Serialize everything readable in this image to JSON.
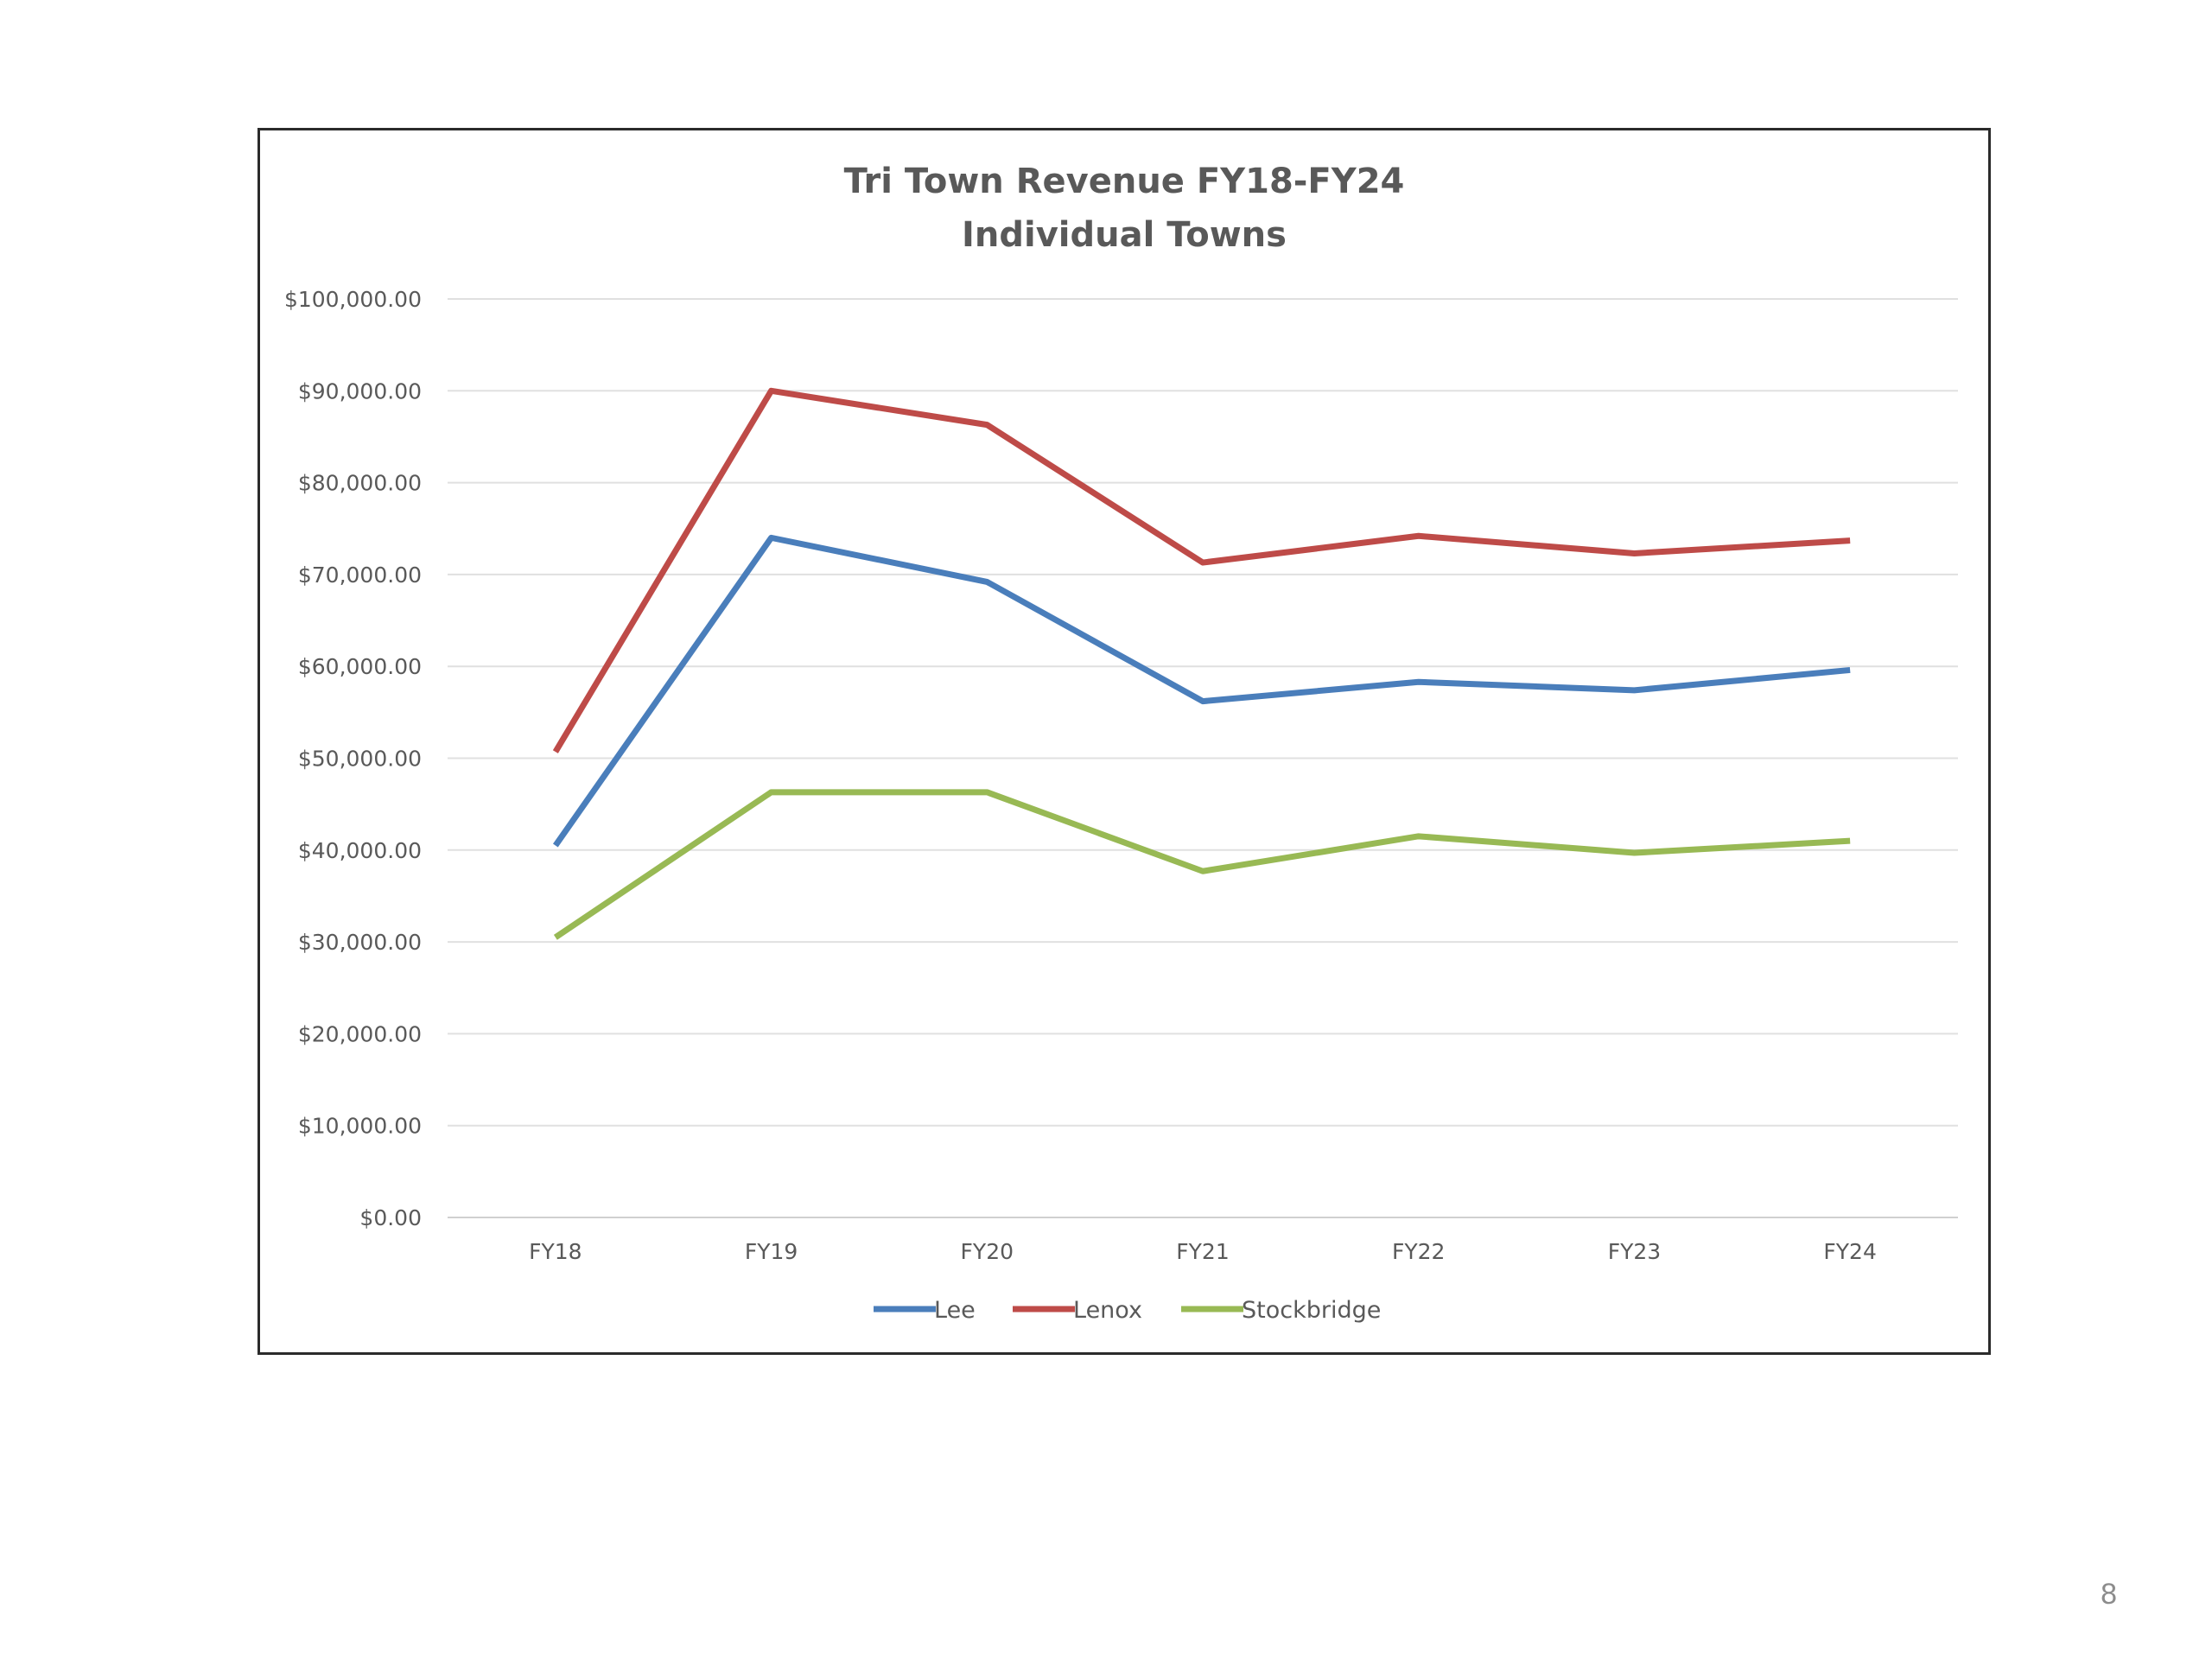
{
  "slide": {
    "page_number": "8"
  },
  "chart_data": {
    "type": "line",
    "title": [
      "Tri Town Revenue FY18-FY24",
      "Individual Towns"
    ],
    "xlabel": "",
    "ylabel": "",
    "categories": [
      "FY18",
      "FY19",
      "FY20",
      "FY21",
      "FY22",
      "FY23",
      "FY24"
    ],
    "ylim": [
      0,
      100000
    ],
    "y_ticks": [
      0,
      10000,
      20000,
      30000,
      40000,
      50000,
      60000,
      70000,
      80000,
      90000,
      100000
    ],
    "y_tick_labels": [
      "$0.00",
      "$10,000.00",
      "$20,000.00",
      "$30,000.00",
      "$40,000.00",
      "$50,000.00",
      "$60,000.00",
      "$70,000.00",
      "$80,000.00",
      "$90,000.00",
      "$100,000.00"
    ],
    "grid": true,
    "legend_position": "bottom",
    "series": [
      {
        "name": "Lee",
        "color": "#4a7ebb",
        "values": [
          40500,
          74000,
          69200,
          56200,
          58300,
          57400,
          59600
        ]
      },
      {
        "name": "Lenox",
        "color": "#be4b48",
        "values": [
          50700,
          90000,
          86300,
          71300,
          74200,
          72300,
          73700
        ]
      },
      {
        "name": "Stockbridge",
        "color": "#98b954",
        "values": [
          30500,
          46300,
          46300,
          37700,
          41500,
          39700,
          41000
        ]
      }
    ]
  }
}
